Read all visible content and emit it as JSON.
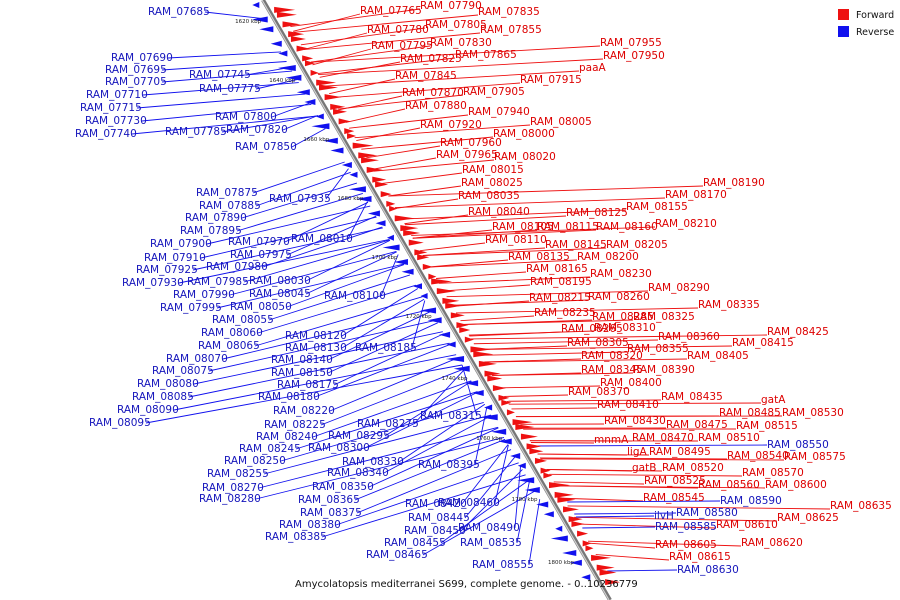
{
  "legend": {
    "forward": "Forward",
    "reverse": "Reverse"
  },
  "caption": "Amycolatopsis mediterranei S699, complete genome. - 0..10236779",
  "colors": {
    "forward": "#ee1111",
    "reverse": "#1111ee",
    "forward_text": "#dd0000",
    "reverse_text": "#1515bb"
  },
  "axis_ticks": [
    "1620 kbp",
    "1640 kbp",
    "1660 kbp",
    "1680 kbp",
    "1700 kbp",
    "1720 kbp",
    "1740 kbp",
    "1760 kbp",
    "1780 kbp",
    "1800 kbp"
  ],
  "forward_labels": [
    "RAM_07765",
    "RAM_07790",
    "RAM_07835",
    "RAM_07780",
    "RAM_07805",
    "RAM_07855",
    "RAM_07795",
    "RAM_07830",
    "RAM_07825",
    "RAM_07865",
    "RAM_07955",
    "RAM_07950",
    "RAM_07845",
    "paaA",
    "RAM_07915",
    "RAM_07870",
    "RAM_07905",
    "RAM_07880",
    "RAM_07940",
    "RAM_08005",
    "RAM_07920",
    "RAM_08000",
    "RAM_07960",
    "RAM_07965",
    "RAM_08020",
    "RAM_08015",
    "RAM_08025",
    "RAM_08035",
    "RAM_08190",
    "RAM_08170",
    "RAM_08040",
    "RAM_08125",
    "RAM_08155",
    "RAM_08105",
    "RAM_08115",
    "RAM_08160",
    "RAM_08210",
    "RAM_08110",
    "RAM_08145",
    "RAM_08205",
    "RAM_08135",
    "RAM_08200",
    "RAM_08165",
    "RAM_08230",
    "RAM_08195",
    "RAM_08290",
    "RAM_08215",
    "RAM_08260",
    "RAM_08335",
    "RAM_08235",
    "RAM_08285",
    "RAM_08325",
    "RAM_08265",
    "RAM_08310",
    "RAM_08425",
    "RAM_08360",
    "RAM_08415",
    "RAM_08305",
    "RAM_08355",
    "RAM_08320",
    "RAM_08405",
    "RAM_08345",
    "RAM_08390",
    "RAM_08400",
    "RAM_08370",
    "RAM_08435",
    "RAM_08410",
    "gatA",
    "RAM_08485",
    "RAM_08530",
    "RAM_08430",
    "RAM_08475",
    "RAM_08515",
    "mnmA",
    "RAM_08470",
    "RAM_08510",
    "ligA",
    "RAM_08495",
    "RAM_08540",
    "RAM_08575",
    "gatB",
    "RAM_08520",
    "RAM_08570",
    "RAM_08525",
    "RAM_08560",
    "RAM_08600",
    "RAM_08545",
    "RAM_08635",
    "RAM_08625",
    "RAM_08610",
    "RAM_08620",
    "RAM_08605",
    "RAM_08615"
  ],
  "reverse_labels": [
    "RAM_07685",
    "RAM_07690",
    "RAM_07695",
    "RAM_07705",
    "RAM_07745",
    "RAM_07710",
    "RAM_07775",
    "RAM_07715",
    "RAM_07730",
    "RAM_07800",
    "RAM_07740",
    "RAM_07785",
    "RAM_07820",
    "RAM_07850",
    "RAM_07875",
    "RAM_07885",
    "RAM_07935",
    "RAM_07890",
    "RAM_07895",
    "RAM_07970",
    "RAM_08010",
    "RAM_07900",
    "RAM_07910",
    "RAM_07975",
    "RAM_07925",
    "RAM_07980",
    "RAM_07930",
    "RAM_07985",
    "RAM_08030",
    "RAM_07990",
    "RAM_08045",
    "RAM_08100",
    "RAM_07995",
    "RAM_08050",
    "RAM_08055",
    "RAM_08060",
    "RAM_08120",
    "RAM_08065",
    "RAM_08130",
    "RAM_08185",
    "RAM_08070",
    "RAM_08140",
    "RAM_08075",
    "RAM_08150",
    "RAM_08080",
    "RAM_08175",
    "RAM_08085",
    "RAM_08180",
    "RAM_08090",
    "RAM_08095",
    "RAM_08220",
    "RAM_08225",
    "RAM_08275",
    "RAM_08315",
    "RAM_08240",
    "RAM_08295",
    "RAM_08245",
    "RAM_08300",
    "RAM_08250",
    "RAM_08330",
    "RAM_08395",
    "RAM_08255",
    "RAM_08340",
    "RAM_08270",
    "RAM_08350",
    "RAM_08280",
    "RAM_08365",
    "RAM_08375",
    "RAM_08420",
    "RAM_08460",
    "RAM_08445",
    "RAM_08380",
    "RAM_08490",
    "RAM_08450",
    "RAM_08385",
    "RAM_08455",
    "RAM_08535",
    "RAM_08465",
    "RAM_08555",
    "RAM_08550",
    "RAM_08590",
    "ilvH",
    "RAM_08580",
    "RAM_08585",
    "RAM_08630"
  ]
}
